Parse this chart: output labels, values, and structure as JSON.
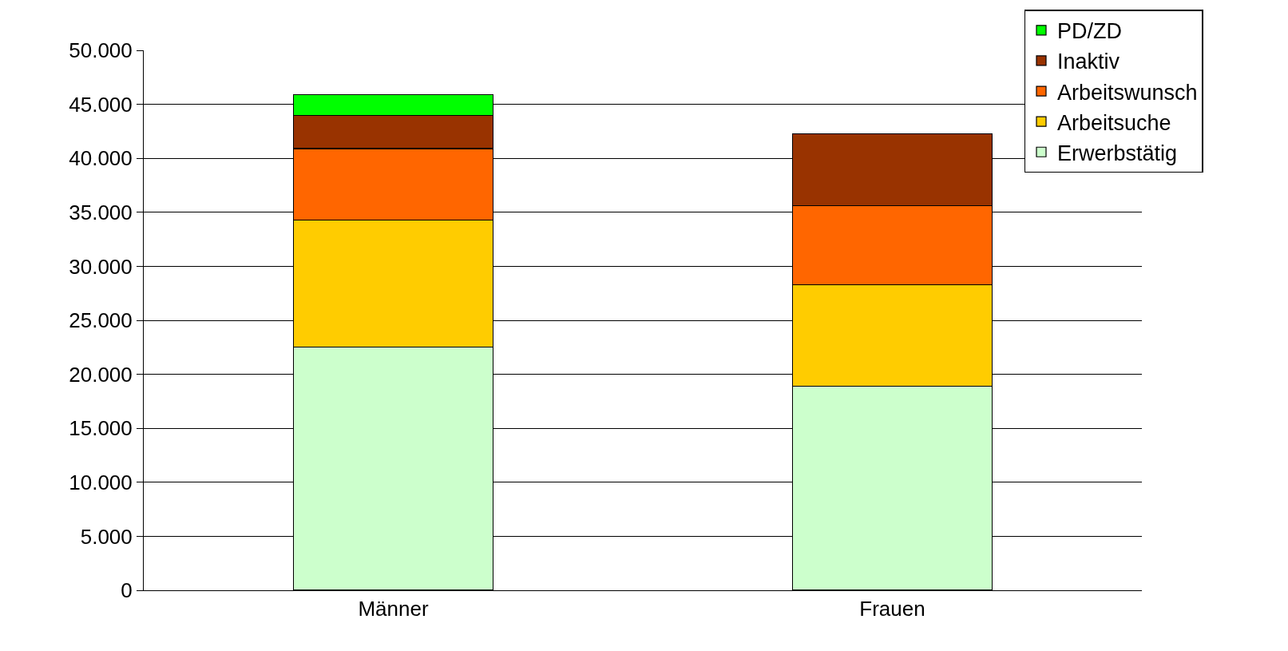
{
  "chart_data": {
    "type": "bar",
    "stacked": true,
    "categories": [
      "Männer",
      "Frauen"
    ],
    "series": [
      {
        "name": "Erwerbstätig",
        "color": "#ccffcc",
        "values": [
          22500,
          18900
        ]
      },
      {
        "name": "Arbeitsuche",
        "color": "#ffcc00",
        "values": [
          11800,
          9400
        ]
      },
      {
        "name": "Arbeitswunsch",
        "color": "#ff6600",
        "values": [
          6600,
          7300
        ]
      },
      {
        "name": "Inaktiv",
        "color": "#993300",
        "values": [
          3100,
          6700
        ]
      },
      {
        "name": "PD/ZD",
        "color": "#00ff00",
        "values": [
          1900,
          null
        ]
      }
    ],
    "ylim": [
      0,
      50000
    ],
    "yticks": [
      {
        "value": 0,
        "label": "0"
      },
      {
        "value": 5000,
        "label": "5.000"
      },
      {
        "value": 10000,
        "label": "10.000"
      },
      {
        "value": 15000,
        "label": "15.000"
      },
      {
        "value": 20000,
        "label": "20.000"
      },
      {
        "value": 25000,
        "label": "25.000"
      },
      {
        "value": 30000,
        "label": "30.000"
      },
      {
        "value": 35000,
        "label": "35.000"
      },
      {
        "value": 40000,
        "label": "40.000"
      },
      {
        "value": 45000,
        "label": "45.000"
      },
      {
        "value": 50000,
        "label": "50.000"
      }
    ],
    "grid": "y",
    "legend": "top right"
  }
}
